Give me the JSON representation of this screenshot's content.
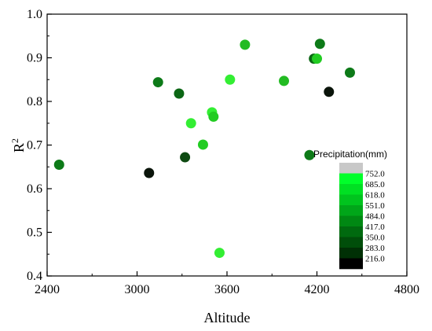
{
  "chart_data": {
    "type": "scatter",
    "xlabel": "Altitude",
    "ylabel_main": "R",
    "ylabel_sup": "2",
    "xlim": [
      2400,
      4800
    ],
    "ylim": [
      0.4,
      1.0
    ],
    "x_ticks": [
      "2400",
      "3000",
      "3600",
      "4200",
      "4800"
    ],
    "y_ticks": [
      "0.4",
      "0.5",
      "0.6",
      "0.7",
      "0.8",
      "0.9",
      "1.0"
    ],
    "grid": false,
    "legend": {
      "title": "Precipitation(mm)",
      "placement": "bottom-right",
      "levels": [
        "752.0",
        "685.0",
        "618.0",
        "551.0",
        "484.0",
        "417.0",
        "350.0",
        "283.0",
        "216.0"
      ],
      "colors": [
        "#c8c8c8",
        "#00ff2a",
        "#00e023",
        "#00c41e",
        "#00a619",
        "#008813",
        "#006a0f",
        "#004e0a",
        "#003005",
        "#000000"
      ]
    },
    "points": [
      {
        "x": 2480,
        "y": 0.655,
        "color": "#0d7a18"
      },
      {
        "x": 3080,
        "y": 0.636,
        "color": "#0a140a"
      },
      {
        "x": 3140,
        "y": 0.844,
        "color": "#0d7a18"
      },
      {
        "x": 3280,
        "y": 0.818,
        "color": "#0b6614"
      },
      {
        "x": 3320,
        "y": 0.672,
        "color": "#0e4a12"
      },
      {
        "x": 3360,
        "y": 0.75,
        "color": "#33ee33"
      },
      {
        "x": 3440,
        "y": 0.701,
        "color": "#22cc22"
      },
      {
        "x": 3500,
        "y": 0.775,
        "color": "#33ee33"
      },
      {
        "x": 3510,
        "y": 0.765,
        "color": "#22cc22"
      },
      {
        "x": 3550,
        "y": 0.453,
        "color": "#33ee33"
      },
      {
        "x": 3620,
        "y": 0.85,
        "color": "#33ee33"
      },
      {
        "x": 3720,
        "y": 0.93,
        "color": "#22bb22"
      },
      {
        "x": 3980,
        "y": 0.847,
        "color": "#22bb22"
      },
      {
        "x": 4150,
        "y": 0.677,
        "color": "#0d7a18"
      },
      {
        "x": 4180,
        "y": 0.898,
        "color": "#0b6614"
      },
      {
        "x": 4200,
        "y": 0.898,
        "color": "#22cc22"
      },
      {
        "x": 4220,
        "y": 0.932,
        "color": "#0d7a18"
      },
      {
        "x": 4280,
        "y": 0.822,
        "color": "#0a140a"
      },
      {
        "x": 4420,
        "y": 0.866,
        "color": "#0d7a18"
      }
    ]
  }
}
